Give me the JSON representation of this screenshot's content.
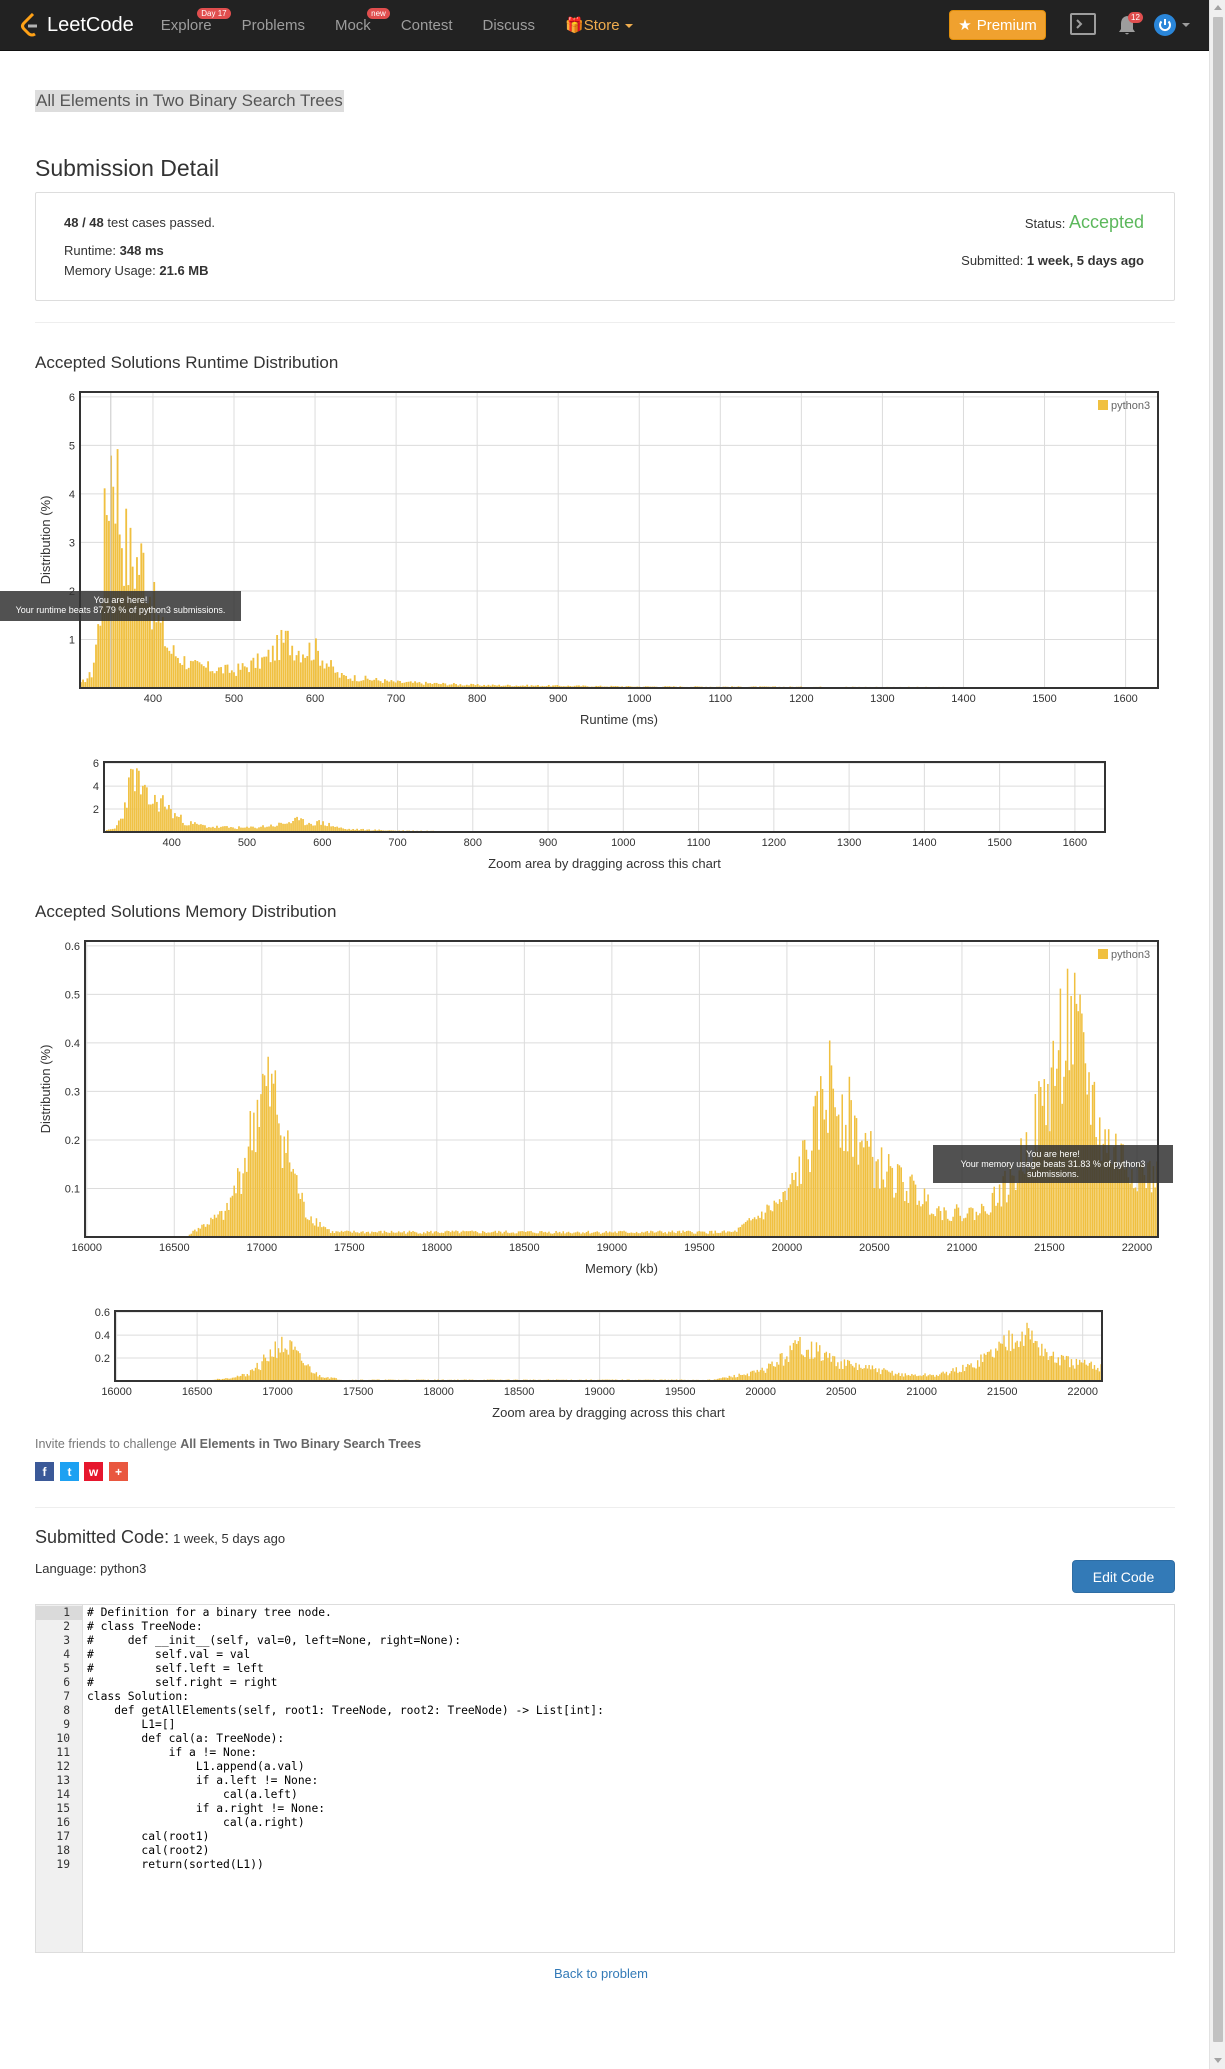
{
  "nav": {
    "brand": "LeetCode",
    "links": [
      {
        "label": "Explore",
        "badge": "Day 17"
      },
      {
        "label": "Problems",
        "badge": ""
      },
      {
        "label": "Mock",
        "badge": "new"
      },
      {
        "label": "Contest",
        "badge": ""
      },
      {
        "label": "Discuss",
        "badge": ""
      }
    ],
    "store": "Store",
    "premium": "Premium",
    "notification_count": "12",
    "icons": [
      "leetcode-logo-icon",
      "console-icon",
      "bell-icon",
      "power-icon"
    ]
  },
  "problem_title": "All Elements in Two Binary Search Trees",
  "detail": {
    "heading": "Submission Detail",
    "passed": "48 / 48",
    "passed_suffix": " test cases passed.",
    "runtime_label": "Runtime: ",
    "runtime": "348 ms",
    "memory_label": "Memory Usage: ",
    "memory": "21.6 MB",
    "status_label": "Status: ",
    "status": "Accepted",
    "submitted_label": "Submitted: ",
    "submitted": "1 week, 5 days ago"
  },
  "colors": {
    "bar": "#f0c040",
    "accepted": "#5cb85c",
    "link": "#337ab7",
    "premium": "#f0a12f"
  },
  "runtime_chart": {
    "heading": "Accepted Solutions Runtime Distribution",
    "legend": "python3",
    "tooltip_title": "You are here!",
    "tooltip_text": "Your runtime beats 87.79 % of python3 submissions.",
    "zoom_caption": "Zoom area by dragging across this chart"
  },
  "memory_chart": {
    "heading": "Accepted Solutions Memory Distribution",
    "legend": "python3",
    "tooltip_title": "You are here!",
    "tooltip_text": "Your memory usage beats 31.83 % of python3 submissions.",
    "zoom_caption": "Zoom area by dragging across this chart"
  },
  "chart_data": [
    {
      "type": "bar",
      "xlabel": "Runtime (ms)",
      "ylabel": "Distribution (%)",
      "xlim": [
        310,
        1640
      ],
      "ylim": [
        0,
        6.1
      ],
      "xticks": [
        400,
        500,
        600,
        700,
        800,
        900,
        1000,
        1100,
        1200,
        1300,
        1400,
        1500,
        1600
      ],
      "yticks": [
        1,
        2,
        3,
        4,
        5,
        6
      ],
      "grid": true,
      "legend_position": "top-right",
      "series": [
        {
          "name": "python3",
          "peaks": [
            {
              "x": 325,
              "y": 0.3
            },
            {
              "x": 335,
              "y": 1.5
            },
            {
              "x": 340,
              "y": 3.0
            },
            {
              "x": 345,
              "y": 4.3
            },
            {
              "x": 350,
              "y": 5.0
            },
            {
              "x": 355,
              "y": 4.6
            },
            {
              "x": 360,
              "y": 3.5
            },
            {
              "x": 370,
              "y": 2.7
            },
            {
              "x": 380,
              "y": 2.6
            },
            {
              "x": 390,
              "y": 2.6
            },
            {
              "x": 400,
              "y": 1.7
            },
            {
              "x": 420,
              "y": 0.8
            },
            {
              "x": 450,
              "y": 0.45
            },
            {
              "x": 500,
              "y": 0.35
            },
            {
              "x": 540,
              "y": 0.6
            },
            {
              "x": 565,
              "y": 1.0
            },
            {
              "x": 580,
              "y": 0.8
            },
            {
              "x": 600,
              "y": 0.8
            },
            {
              "x": 630,
              "y": 0.25
            },
            {
              "x": 700,
              "y": 0.12
            },
            {
              "x": 800,
              "y": 0.06
            },
            {
              "x": 1000,
              "y": 0.03
            },
            {
              "x": 1300,
              "y": 0.02
            },
            {
              "x": 1600,
              "y": 0.01
            }
          ]
        }
      ],
      "marker": {
        "x": 348
      },
      "overview": {
        "ylim": [
          0,
          6.1
        ],
        "yticks": [
          2,
          4,
          6
        ],
        "xticks": [
          400,
          500,
          600,
          700,
          800,
          900,
          1000,
          1100,
          1200,
          1300,
          1400,
          1500,
          1600
        ]
      }
    },
    {
      "type": "bar",
      "xlabel": "Memory (kb)",
      "ylabel": "Distribution (%)",
      "xlim": [
        15990,
        22120
      ],
      "ylim": [
        0,
        0.61
      ],
      "xticks": [
        16000,
        16500,
        17000,
        17500,
        18000,
        18500,
        19000,
        19500,
        20000,
        20500,
        21000,
        21500,
        22000
      ],
      "yticks": [
        0.1,
        0.2,
        0.3,
        0.4,
        0.5,
        0.6
      ],
      "grid": true,
      "legend_position": "top-right",
      "series": [
        {
          "name": "python3",
          "peaks": [
            {
              "x": 16600,
              "y": 0.01
            },
            {
              "x": 16800,
              "y": 0.05
            },
            {
              "x": 16900,
              "y": 0.15
            },
            {
              "x": 17000,
              "y": 0.3
            },
            {
              "x": 17080,
              "y": 0.28
            },
            {
              "x": 17150,
              "y": 0.17
            },
            {
              "x": 17250,
              "y": 0.05
            },
            {
              "x": 17400,
              "y": 0.01
            },
            {
              "x": 19700,
              "y": 0.01
            },
            {
              "x": 20000,
              "y": 0.08
            },
            {
              "x": 20150,
              "y": 0.2
            },
            {
              "x": 20250,
              "y": 0.32
            },
            {
              "x": 20350,
              "y": 0.25
            },
            {
              "x": 20500,
              "y": 0.15
            },
            {
              "x": 20700,
              "y": 0.1
            },
            {
              "x": 20900,
              "y": 0.05
            },
            {
              "x": 21100,
              "y": 0.05
            },
            {
              "x": 21300,
              "y": 0.12
            },
            {
              "x": 21500,
              "y": 0.3
            },
            {
              "x": 21600,
              "y": 0.45
            },
            {
              "x": 21700,
              "y": 0.35
            },
            {
              "x": 21800,
              "y": 0.2
            },
            {
              "x": 21950,
              "y": 0.15
            },
            {
              "x": 22100,
              "y": 0.12
            }
          ]
        }
      ],
      "marker": {
        "x": 21600
      },
      "overview": {
        "ylim": [
          0,
          0.61
        ],
        "yticks": [
          0.2,
          0.4,
          0.6
        ],
        "xticks": [
          16000,
          16500,
          17000,
          17500,
          18000,
          18500,
          19000,
          19500,
          20000,
          20500,
          21000,
          21500,
          22000
        ]
      }
    }
  ],
  "invite": {
    "prefix": "Invite friends to challenge ",
    "problem": "All Elements in Two Binary Search Trees",
    "share_icons": [
      "facebook-icon",
      "twitter-icon",
      "weibo-icon",
      "plus-icon"
    ]
  },
  "code": {
    "heading": "Submitted Code:",
    "time": "1 week, 5 days ago",
    "language": "Language: python3",
    "edit_button": "Edit Code",
    "lines": [
      "# Definition for a binary tree node.",
      "# class TreeNode:",
      "#     def __init__(self, val=0, left=None, right=None):",
      "#         self.val = val",
      "#         self.left = left",
      "#         self.right = right",
      "class Solution:",
      "    def getAllElements(self, root1: TreeNode, root2: TreeNode) -> List[int]:",
      "        L1=[]",
      "        def cal(a: TreeNode):",
      "            if a != None:",
      "                L1.append(a.val)",
      "                if a.left != None:",
      "                    cal(a.left)",
      "                if a.right != None:",
      "                    cal(a.right)",
      "        cal(root1)",
      "        cal(root2)",
      "        return(sorted(L1))"
    ]
  },
  "back_link": "Back to problem"
}
